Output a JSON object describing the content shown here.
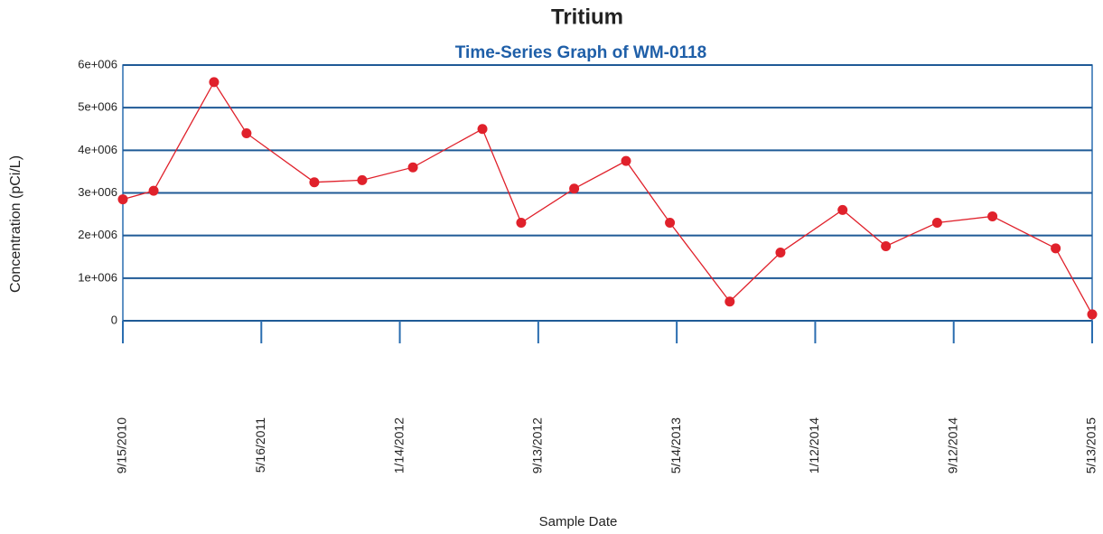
{
  "chart_data": {
    "type": "line",
    "title": "Tritium",
    "subtitle": "Time-Series Graph of WM-0118",
    "x_label": "Sample Date",
    "y_label": "Concentration (pCi/L)",
    "x": [
      "9/15/2010",
      "11/8/2010",
      "2/22/2011",
      "4/20/2011",
      "8/17/2011",
      "11/9/2011",
      "2/6/2012",
      "6/7/2012",
      "8/14/2012",
      "11/15/2012",
      "2/14/2013",
      "5/2/2013",
      "8/15/2013",
      "11/12/2013",
      "3/1/2014",
      "5/16/2014",
      "8/14/2014",
      "11/19/2014",
      "3/10/2015",
      "5/13/2015"
    ],
    "values": [
      2850000,
      3050000,
      5600000,
      4400000,
      3250000,
      3300000,
      3600000,
      4500000,
      2300000,
      3100000,
      3750000,
      2300000,
      450000,
      1600000,
      2600000,
      1750000,
      2300000,
      2450000,
      1700000,
      150000
    ],
    "color": "#e0212b",
    "xlim": [
      "9/15/2010",
      "5/13/2015"
    ],
    "xticks": [
      "9/15/2010",
      "5/16/2011",
      "1/14/2012",
      "9/13/2012",
      "5/14/2013",
      "1/12/2014",
      "9/12/2014",
      "5/13/2015"
    ],
    "ylim": [
      0,
      6000000
    ],
    "yticks": [
      0,
      {
        "value": 1000000,
        "label": "1e+006"
      },
      {
        "value": 2000000,
        "label": "2e+006"
      },
      {
        "value": 3000000,
        "label": "3e+006"
      },
      {
        "value": 4000000,
        "label": "4e+006"
      },
      {
        "value": 5000000,
        "label": "5e+006"
      },
      {
        "value": 6000000,
        "label": "6e+006"
      }
    ],
    "grid": true
  }
}
